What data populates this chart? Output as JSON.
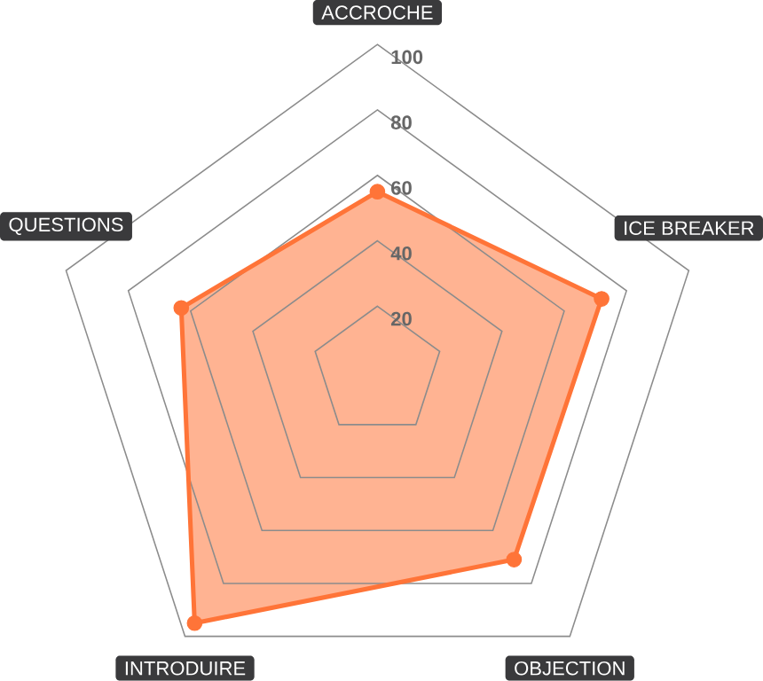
{
  "chart_data": {
    "type": "radar",
    "categories": [
      "ACCROCHE",
      "ICE BREAKER",
      "OBJECTION",
      "INTRODUIRE",
      "QUESTIONS"
    ],
    "series": [
      {
        "color": "#ff7438",
        "values": [
          55,
          72,
          71,
          95,
          63
        ]
      }
    ],
    "ylim": [
      0,
      100
    ],
    "yticks": [
      20,
      40,
      60,
      80,
      100
    ],
    "grid": true,
    "marker": "circle"
  }
}
